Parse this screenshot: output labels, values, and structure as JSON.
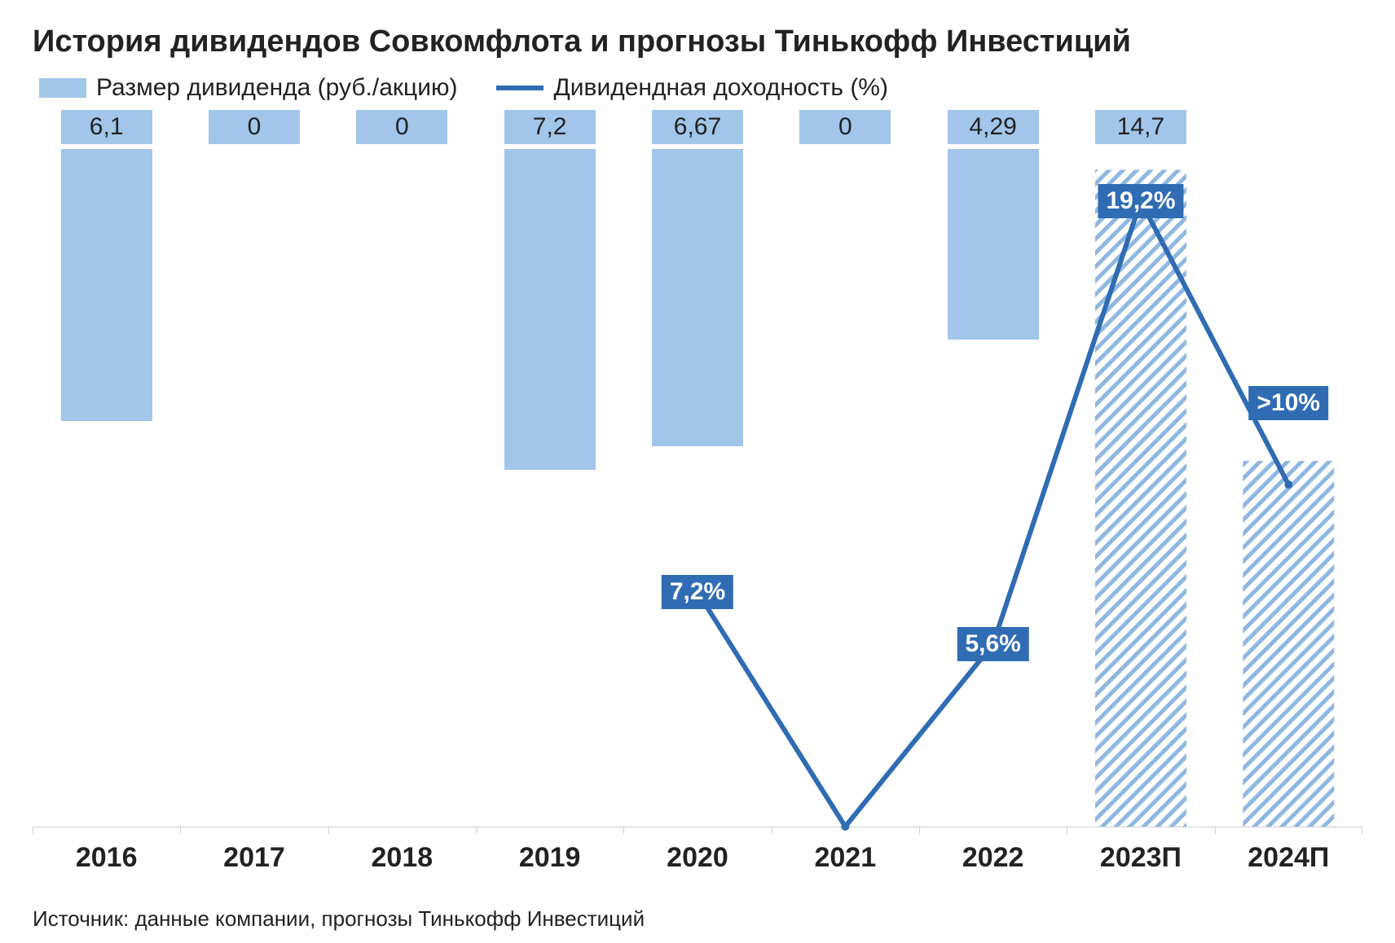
{
  "title": "История дивидендов Совкомфлота и прогнозы Тинькофф Инвестиций",
  "legend": {
    "bar_label": "Размер дивиденда (руб./акцию)",
    "line_label": "Дивидендная доходность (%)"
  },
  "chart": {
    "type": "bar+line",
    "categories": [
      "2016",
      "2017",
      "2018",
      "2019",
      "2020",
      "2021",
      "2022",
      "2023П",
      "2024П"
    ],
    "bar_values": [
      6.1,
      0,
      0,
      7.2,
      6.67,
      0,
      4.29,
      14.7,
      8.2
    ],
    "bar_value_labels": [
      "6,1",
      "0",
      "0",
      "7,2",
      "6,67",
      "0",
      "4,29",
      "14,7",
      ""
    ],
    "bar_forecast": [
      false,
      false,
      false,
      false,
      false,
      false,
      false,
      true,
      true
    ],
    "y_max": 16,
    "bar_color": "#a2c5ea",
    "bar_label_bg": "#a2c5ea",
    "bar_label_fg": "#222222",
    "hatch_stroke": "#8fb7e0",
    "line_points_idx": [
      4,
      5,
      6,
      7,
      8
    ],
    "line_values_pct": [
      7.2,
      0,
      5.6,
      19.2,
      10.5
    ],
    "line_y_max": 22,
    "line_value_labels": [
      "7,2%",
      "",
      "5,6%",
      "19,2%",
      ">10%"
    ],
    "line_label_offset_pct": [
      0,
      0,
      0,
      0,
      2.5
    ],
    "line_color": "#2f6cb3",
    "line_width": 6,
    "yield_label_bg": "#2f6cb3",
    "yield_label_fg": "#ffffff",
    "axis_fontsize": 34,
    "title_fontsize": 38,
    "legend_fontsize": 30,
    "value_fontsize": 30,
    "background_color": "#ffffff",
    "axis_color": "#cfcfcf"
  },
  "source": "Источник: данные компании, прогнозы Тинькофф Инвестиций"
}
